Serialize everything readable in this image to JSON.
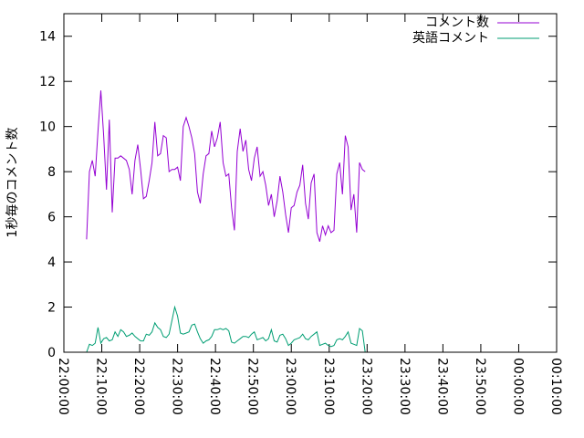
{
  "chart_data": {
    "type": "line",
    "title": "",
    "xlabel": "",
    "ylabel": "1秒毎のコメント数",
    "ylim": [
      0,
      15
    ],
    "y_ticks": [
      0,
      2,
      4,
      6,
      8,
      10,
      12,
      14
    ],
    "xlim": [
      "22:00:00",
      "00:10:00"
    ],
    "x_tick_labels": [
      "22:00:00",
      "22:10:00",
      "22:20:00",
      "22:30:00",
      "22:40:00",
      "22:50:00",
      "23:00:00",
      "23:10:00",
      "23:20:00",
      "23:30:00",
      "23:40:00",
      "23:50:00",
      "00:00:00",
      "00:10:00"
    ],
    "grid": false,
    "legend_position": "top-right",
    "series": [
      {
        "name": "コメント数",
        "color": "#9400d3",
        "points": [
          [
            "22:06:00",
            5.0
          ],
          [
            "22:06:45",
            8.0
          ],
          [
            "22:07:30",
            8.5
          ],
          [
            "22:08:15",
            7.8
          ],
          [
            "22:09:00",
            9.8
          ],
          [
            "22:09:45",
            11.6
          ],
          [
            "22:10:30",
            9.6
          ],
          [
            "22:11:15",
            7.2
          ],
          [
            "22:12:00",
            10.3
          ],
          [
            "22:12:45",
            6.2
          ],
          [
            "22:13:30",
            8.6
          ],
          [
            "22:14:15",
            8.6
          ],
          [
            "22:15:00",
            8.7
          ],
          [
            "22:15:45",
            8.6
          ],
          [
            "22:16:30",
            8.5
          ],
          [
            "22:17:15",
            8.1
          ],
          [
            "22:18:00",
            7.0
          ],
          [
            "22:18:45",
            8.5
          ],
          [
            "22:19:30",
            9.2
          ],
          [
            "22:20:15",
            8.1
          ],
          [
            "22:21:00",
            6.8
          ],
          [
            "22:21:45",
            6.9
          ],
          [
            "22:22:30",
            7.6
          ],
          [
            "22:23:15",
            8.4
          ],
          [
            "22:24:00",
            10.2
          ],
          [
            "22:24:45",
            8.7
          ],
          [
            "22:25:30",
            8.8
          ],
          [
            "22:26:15",
            9.6
          ],
          [
            "22:27:00",
            9.5
          ],
          [
            "22:27:45",
            8.0
          ],
          [
            "22:28:30",
            8.1
          ],
          [
            "22:29:15",
            8.1
          ],
          [
            "22:30:00",
            8.2
          ],
          [
            "22:30:45",
            7.6
          ],
          [
            "22:31:30",
            10.0
          ],
          [
            "22:32:15",
            10.4
          ],
          [
            "22:33:00",
            10.0
          ],
          [
            "22:33:45",
            9.5
          ],
          [
            "22:34:30",
            8.8
          ],
          [
            "22:35:15",
            7.1
          ],
          [
            "22:36:00",
            6.6
          ],
          [
            "22:36:45",
            7.9
          ],
          [
            "22:37:30",
            8.7
          ],
          [
            "22:38:15",
            8.8
          ],
          [
            "22:39:00",
            9.8
          ],
          [
            "22:39:45",
            9.1
          ],
          [
            "22:40:30",
            9.5
          ],
          [
            "22:41:15",
            10.2
          ],
          [
            "22:42:00",
            8.4
          ],
          [
            "22:42:45",
            7.8
          ],
          [
            "22:43:30",
            7.9
          ],
          [
            "22:44:15",
            6.4
          ],
          [
            "22:45:00",
            5.4
          ],
          [
            "22:45:45",
            8.9
          ],
          [
            "22:46:30",
            9.9
          ],
          [
            "22:47:15",
            8.9
          ],
          [
            "22:48:00",
            9.4
          ],
          [
            "22:48:45",
            8.1
          ],
          [
            "22:49:30",
            7.6
          ],
          [
            "22:50:15",
            8.6
          ],
          [
            "22:51:00",
            9.1
          ],
          [
            "22:51:45",
            7.8
          ],
          [
            "22:52:30",
            8.0
          ],
          [
            "22:53:15",
            7.4
          ],
          [
            "22:54:00",
            6.5
          ],
          [
            "22:54:45",
            7.0
          ],
          [
            "22:55:30",
            6.0
          ],
          [
            "22:56:15",
            6.7
          ],
          [
            "22:57:00",
            7.8
          ],
          [
            "22:57:45",
            7.1
          ],
          [
            "22:58:30",
            6.1
          ],
          [
            "22:59:15",
            5.3
          ],
          [
            "23:00:00",
            6.4
          ],
          [
            "23:00:45",
            6.5
          ],
          [
            "23:01:30",
            7.1
          ],
          [
            "23:02:15",
            7.4
          ],
          [
            "23:03:00",
            8.3
          ],
          [
            "23:03:45",
            6.6
          ],
          [
            "23:04:30",
            5.9
          ],
          [
            "23:05:15",
            7.5
          ],
          [
            "23:06:00",
            7.9
          ],
          [
            "23:06:45",
            5.3
          ],
          [
            "23:07:30",
            4.9
          ],
          [
            "23:08:15",
            5.6
          ],
          [
            "23:09:00",
            5.2
          ],
          [
            "23:09:45",
            5.6
          ],
          [
            "23:10:30",
            5.3
          ],
          [
            "23:11:15",
            5.4
          ],
          [
            "23:12:00",
            7.9
          ],
          [
            "23:12:45",
            8.4
          ],
          [
            "23:13:30",
            7.0
          ],
          [
            "23:14:15",
            9.6
          ],
          [
            "23:15:00",
            9.1
          ],
          [
            "23:15:45",
            6.3
          ],
          [
            "23:16:30",
            7.0
          ],
          [
            "23:17:15",
            5.3
          ],
          [
            "23:18:00",
            8.4
          ],
          [
            "23:18:45",
            8.1
          ],
          [
            "23:19:30",
            8.0
          ]
        ]
      },
      {
        "name": "英語コメント",
        "color": "#009e73",
        "points": [
          [
            "22:06:00",
            0.0
          ],
          [
            "22:06:45",
            0.35
          ],
          [
            "22:07:30",
            0.3
          ],
          [
            "22:08:15",
            0.4
          ],
          [
            "22:09:00",
            1.1
          ],
          [
            "22:09:45",
            0.4
          ],
          [
            "22:10:30",
            0.6
          ],
          [
            "22:11:15",
            0.65
          ],
          [
            "22:12:00",
            0.5
          ],
          [
            "22:12:45",
            0.55
          ],
          [
            "22:13:30",
            0.9
          ],
          [
            "22:14:15",
            0.7
          ],
          [
            "22:15:00",
            1.0
          ],
          [
            "22:15:45",
            0.9
          ],
          [
            "22:16:30",
            0.7
          ],
          [
            "22:17:15",
            0.75
          ],
          [
            "22:18:00",
            0.85
          ],
          [
            "22:18:45",
            0.7
          ],
          [
            "22:19:30",
            0.6
          ],
          [
            "22:20:15",
            0.5
          ],
          [
            "22:21:00",
            0.5
          ],
          [
            "22:21:45",
            0.8
          ],
          [
            "22:22:30",
            0.75
          ],
          [
            "22:23:15",
            0.9
          ],
          [
            "22:24:00",
            1.3
          ],
          [
            "22:24:45",
            1.1
          ],
          [
            "22:25:30",
            1.0
          ],
          [
            "22:26:15",
            0.7
          ],
          [
            "22:27:00",
            0.65
          ],
          [
            "22:27:45",
            0.8
          ],
          [
            "22:28:30",
            1.4
          ],
          [
            "22:29:15",
            2.0
          ],
          [
            "22:30:00",
            1.6
          ],
          [
            "22:30:45",
            0.85
          ],
          [
            "22:31:30",
            0.8
          ],
          [
            "22:32:15",
            0.85
          ],
          [
            "22:33:00",
            0.9
          ],
          [
            "22:33:45",
            1.2
          ],
          [
            "22:34:30",
            1.25
          ],
          [
            "22:35:15",
            0.9
          ],
          [
            "22:36:00",
            0.6
          ],
          [
            "22:36:45",
            0.4
          ],
          [
            "22:37:30",
            0.5
          ],
          [
            "22:38:15",
            0.55
          ],
          [
            "22:39:00",
            0.7
          ],
          [
            "22:39:45",
            1.0
          ],
          [
            "22:40:30",
            1.0
          ],
          [
            "22:41:15",
            1.05
          ],
          [
            "22:42:00",
            1.0
          ],
          [
            "22:42:45",
            1.05
          ],
          [
            "22:43:30",
            0.95
          ],
          [
            "22:44:15",
            0.45
          ],
          [
            "22:45:00",
            0.4
          ],
          [
            "22:45:45",
            0.5
          ],
          [
            "22:46:30",
            0.6
          ],
          [
            "22:47:15",
            0.7
          ],
          [
            "22:48:00",
            0.7
          ],
          [
            "22:48:45",
            0.65
          ],
          [
            "22:49:30",
            0.8
          ],
          [
            "22:50:15",
            0.9
          ],
          [
            "22:51:00",
            0.55
          ],
          [
            "22:51:45",
            0.6
          ],
          [
            "22:52:30",
            0.65
          ],
          [
            "22:53:15",
            0.5
          ],
          [
            "22:54:00",
            0.6
          ],
          [
            "22:54:45",
            1.0
          ],
          [
            "22:55:30",
            0.5
          ],
          [
            "22:56:15",
            0.45
          ],
          [
            "22:57:00",
            0.75
          ],
          [
            "22:57:45",
            0.8
          ],
          [
            "22:58:30",
            0.6
          ],
          [
            "22:59:15",
            0.3
          ],
          [
            "23:00:00",
            0.4
          ],
          [
            "23:00:45",
            0.55
          ],
          [
            "23:01:30",
            0.6
          ],
          [
            "23:02:15",
            0.65
          ],
          [
            "23:03:00",
            0.8
          ],
          [
            "23:03:45",
            0.6
          ],
          [
            "23:04:30",
            0.55
          ],
          [
            "23:05:15",
            0.7
          ],
          [
            "23:06:00",
            0.8
          ],
          [
            "23:06:45",
            0.9
          ],
          [
            "23:07:30",
            0.3
          ],
          [
            "23:08:15",
            0.35
          ],
          [
            "23:09:00",
            0.4
          ],
          [
            "23:09:45",
            0.3
          ],
          [
            "23:10:30",
            0.25
          ],
          [
            "23:11:15",
            0.3
          ],
          [
            "23:12:00",
            0.55
          ],
          [
            "23:12:45",
            0.6
          ],
          [
            "23:13:30",
            0.55
          ],
          [
            "23:14:15",
            0.7
          ],
          [
            "23:15:00",
            0.9
          ],
          [
            "23:15:45",
            0.4
          ],
          [
            "23:16:30",
            0.35
          ],
          [
            "23:17:15",
            0.3
          ],
          [
            "23:18:00",
            1.05
          ],
          [
            "23:18:45",
            0.95
          ],
          [
            "23:19:30",
            0.0
          ]
        ]
      }
    ]
  }
}
